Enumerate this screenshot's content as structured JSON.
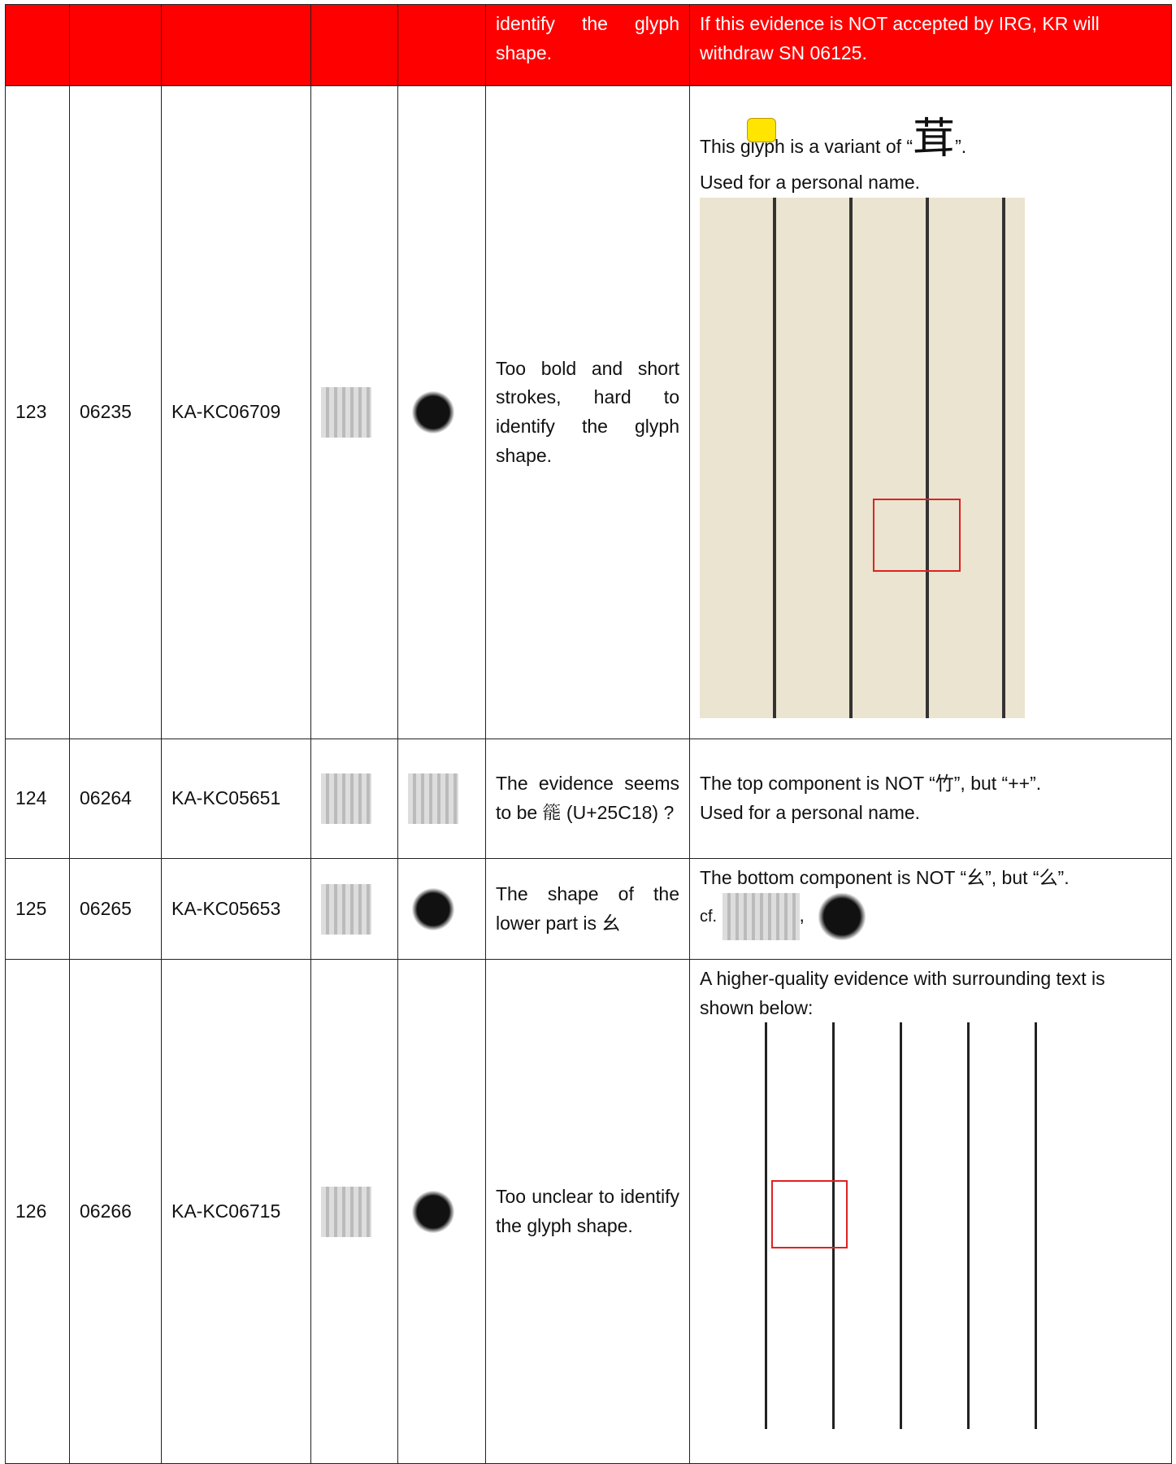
{
  "table": {
    "top_row": {
      "comment": "identify the glyph shape.",
      "response": "If this evidence is NOT accepted by IRG, KR will withdraw SN 06125."
    },
    "rows": [
      {
        "no": "123",
        "sn": "06235",
        "source": "KA-KC06709",
        "comment": "Too bold and short strokes, hard to identify the glyph shape.",
        "response": {
          "before": "This glyph is a variant of “",
          "char": "茸",
          "after": "”.",
          "line2": "Used for a personal name."
        }
      },
      {
        "no": "124",
        "sn": "06264",
        "source": "KA-KC05651",
        "comment": "The evidence seems to be 𥰘 (U+25C18) ?",
        "response": {
          "line1": "The top component is NOT “竹”, but “++”.",
          "line2": "Used for a personal name."
        }
      },
      {
        "no": "125",
        "sn": "06265",
        "source": "KA-KC05653",
        "comment": "The shape of the lower part is 幺",
        "response": {
          "line1": "The bottom component is NOT “幺”, but “么”.",
          "cf": "cf.",
          "sep": ","
        }
      },
      {
        "no": "126",
        "sn": "06266",
        "source": "KA-KC06715",
        "comment": "Too unclear to identify the glyph shape.",
        "response": {
          "line1": "A higher-quality evidence with surrounding text is shown below:"
        }
      }
    ]
  }
}
